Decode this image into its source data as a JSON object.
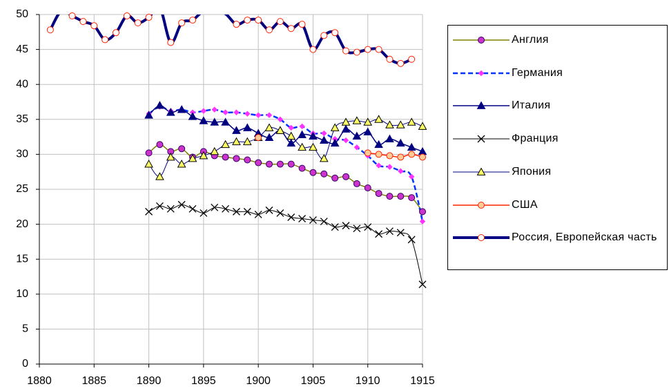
{
  "chart_data": {
    "type": "line",
    "xlim": [
      1880,
      1915
    ],
    "xticks": [
      1880,
      1885,
      1890,
      1895,
      1900,
      1905,
      1910,
      1915
    ],
    "ylim": [
      0,
      50
    ],
    "yticks": [
      0,
      5,
      10,
      15,
      20,
      25,
      30,
      35,
      40,
      45,
      50
    ],
    "grid": true,
    "smooth": true,
    "legend": "right",
    "series": [
      {
        "name": "Англия",
        "color": "#808000",
        "marker": "circle",
        "marker_fill": "#cc33cc",
        "marker_edge": "#330066",
        "dashed": false,
        "line_width": 1.5,
        "x": [
          1890,
          1891,
          1892,
          1893,
          1894,
          1895,
          1896,
          1897,
          1898,
          1899,
          1900,
          1901,
          1902,
          1903,
          1904,
          1905,
          1906,
          1907,
          1908,
          1909,
          1910,
          1911,
          1912,
          1913,
          1914,
          1915
        ],
        "values": [
          30.2,
          31.4,
          30.4,
          30.8,
          29.6,
          30.4,
          29.8,
          29.6,
          29.4,
          29.2,
          28.8,
          28.6,
          28.6,
          28.6,
          28.0,
          27.4,
          27.2,
          26.6,
          26.8,
          25.8,
          25.2,
          24.4,
          24.0,
          24.0,
          23.8,
          21.8
        ]
      },
      {
        "name": "Германия",
        "color": "#0033ff",
        "marker": "diamond",
        "marker_fill": "#ff33ff",
        "marker_edge": "#ff33ff",
        "dashed": true,
        "line_width": 2.5,
        "x": [
          1890,
          1891,
          1892,
          1893,
          1894,
          1895,
          1896,
          1897,
          1898,
          1899,
          1900,
          1901,
          1902,
          1903,
          1904,
          1905,
          1906,
          1907,
          1908,
          1909,
          1910,
          1911,
          1912,
          1913,
          1914,
          1915
        ],
        "values": [
          35.8,
          36.8,
          36.2,
          36.4,
          36.0,
          36.2,
          36.4,
          36.0,
          36.0,
          35.8,
          35.6,
          35.6,
          35.0,
          33.8,
          34.0,
          33.0,
          33.0,
          32.2,
          32.0,
          31.0,
          29.8,
          28.4,
          28.2,
          27.6,
          26.8,
          20.4
        ]
      },
      {
        "name": "Италия",
        "color": "#000080",
        "marker": "triangle",
        "marker_fill": "#000080",
        "marker_edge": "#000080",
        "dashed": false,
        "line_width": 1.5,
        "x": [
          1890,
          1891,
          1892,
          1893,
          1894,
          1895,
          1896,
          1897,
          1898,
          1899,
          1900,
          1901,
          1902,
          1903,
          1904,
          1905,
          1906,
          1907,
          1908,
          1909,
          1910,
          1911,
          1912,
          1913,
          1914,
          1915
        ],
        "values": [
          35.6,
          37.0,
          36.0,
          36.4,
          35.4,
          34.8,
          34.6,
          34.6,
          33.4,
          33.8,
          33.0,
          32.4,
          33.4,
          31.6,
          32.8,
          32.6,
          32.0,
          31.6,
          33.6,
          32.6,
          33.2,
          31.4,
          32.2,
          31.6,
          31.0,
          30.4
        ]
      },
      {
        "name": "Франция",
        "color": "#000000",
        "marker": "cross",
        "marker_fill": "none",
        "marker_edge": "#000000",
        "dashed": false,
        "line_width": 1,
        "x": [
          1890,
          1891,
          1892,
          1893,
          1894,
          1895,
          1896,
          1897,
          1898,
          1899,
          1900,
          1901,
          1902,
          1903,
          1904,
          1905,
          1906,
          1907,
          1908,
          1909,
          1910,
          1911,
          1912,
          1913,
          1914,
          1915
        ],
        "values": [
          21.8,
          22.6,
          22.2,
          22.8,
          22.2,
          21.6,
          22.4,
          22.2,
          21.8,
          21.8,
          21.4,
          22.0,
          21.6,
          21.0,
          20.8,
          20.6,
          20.4,
          19.6,
          19.8,
          19.4,
          19.6,
          18.6,
          19.0,
          18.8,
          17.8,
          11.4
        ]
      },
      {
        "name": "Япония",
        "color": "#000080",
        "marker": "triangle",
        "marker_fill": "#ffff66",
        "marker_edge": "#000000",
        "dashed": false,
        "line_width": 1,
        "x": [
          1890,
          1891,
          1892,
          1893,
          1894,
          1895,
          1896,
          1897,
          1898,
          1899,
          1900,
          1901,
          1902,
          1903,
          1904,
          1905,
          1906,
          1907,
          1908,
          1909,
          1910,
          1911,
          1912,
          1913,
          1914,
          1915
        ],
        "values": [
          28.6,
          26.8,
          29.6,
          28.6,
          29.4,
          29.8,
          30.4,
          31.4,
          31.8,
          31.8,
          32.4,
          33.8,
          33.4,
          32.6,
          31.0,
          31.0,
          29.4,
          33.8,
          34.6,
          34.8,
          34.6,
          35.0,
          34.2,
          34.2,
          34.6,
          34.0
        ]
      },
      {
        "name": "США",
        "color": "#ff2200",
        "marker": "circle",
        "marker_fill": "#ffcc99",
        "marker_edge": "#ff2200",
        "dashed": false,
        "line_width": 1.5,
        "x": [
          1900,
          1909,
          1910,
          1911,
          1912,
          1913,
          1914,
          1915
        ],
        "values": [
          32.4,
          null,
          30.2,
          30.0,
          29.8,
          29.6,
          30.0,
          29.6
        ]
      },
      {
        "name": "Россия, Европейская часть",
        "color": "#000080",
        "marker": "circle",
        "marker_fill": "#ffffff",
        "marker_edge": "#ff2200",
        "dashed": false,
        "line_width": 4,
        "x": [
          1881,
          1882,
          1883,
          1884,
          1885,
          1886,
          1887,
          1888,
          1889,
          1890,
          1891,
          1892,
          1893,
          1894,
          1895,
          1896,
          1897,
          1898,
          1899,
          1900,
          1901,
          1902,
          1903,
          1904,
          1905,
          1906,
          1907,
          1908,
          1909,
          1910,
          1911,
          1912,
          1913,
          1914
        ],
        "values": [
          47.8,
          50.5,
          49.8,
          49.0,
          48.4,
          46.4,
          47.4,
          49.8,
          48.8,
          49.6,
          51.0,
          46.0,
          48.8,
          49.2,
          50.5,
          50.5,
          50.1,
          48.6,
          49.2,
          49.2,
          47.8,
          49.0,
          48.0,
          48.6,
          45.0,
          47.0,
          47.4,
          44.8,
          44.6,
          45.0,
          45.0,
          43.6,
          43.0,
          43.6
        ]
      }
    ]
  }
}
